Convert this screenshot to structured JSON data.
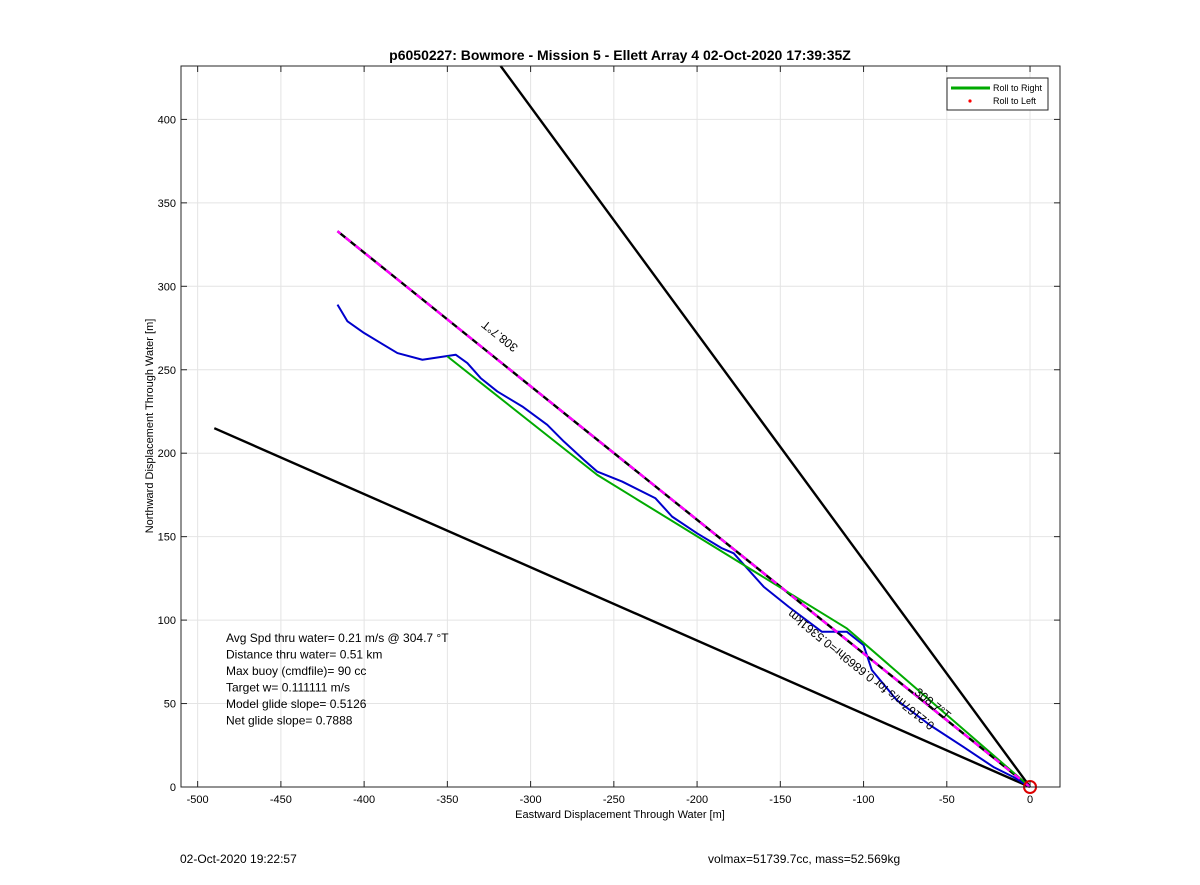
{
  "chart_data": {
    "type": "line",
    "title": "p6050227: Bowmore - Mission 5 - Ellett Array 4 02-Oct-2020 17:39:35Z",
    "xlabel": "Eastward Displacement Through Water [m]",
    "ylabel": "Northward Displacement Through Water [m]",
    "xlim": [
      -510,
      18
    ],
    "ylim": [
      0,
      432
    ],
    "xticks": [
      -500,
      -450,
      -400,
      -350,
      -300,
      -250,
      -200,
      -150,
      -100,
      -50,
      0
    ],
    "yticks": [
      0,
      50,
      100,
      150,
      200,
      250,
      300,
      350,
      400
    ],
    "grid": true,
    "legend_position": "top-right",
    "legend": [
      {
        "label": "Roll to Right",
        "color": "#00aa00",
        "style": "line"
      },
      {
        "label": "Roll to Left",
        "color": "#ff0000",
        "style": "dot"
      }
    ],
    "series": [
      {
        "color": "#0000cc",
        "x": [
          0,
          -10,
          -22,
          -40,
          -60,
          -80,
          -95,
          -100,
          -110,
          -125,
          -145,
          -160,
          -178,
          -185,
          -200,
          -215,
          -225,
          -245,
          -260,
          -268,
          -280,
          -290,
          -305,
          -320,
          -330,
          -338,
          -345,
          -365,
          -380,
          -390,
          -400,
          -410,
          -416
        ],
        "y": [
          0,
          6,
          12,
          24,
          37,
          52,
          70,
          85,
          93,
          93,
          108,
          120,
          140,
          143,
          152,
          162,
          173,
          183,
          189,
          196,
          207,
          217,
          228,
          237,
          245,
          254,
          259,
          256,
          260,
          266,
          272,
          279,
          289
        ]
      },
      {
        "color": "#00aa00",
        "x": [
          0,
          -110,
          -260,
          -350
        ],
        "y": [
          0,
          95,
          187,
          258
        ]
      },
      {
        "color": "#ff00ff",
        "x": [
          0,
          -416
        ],
        "y": [
          0,
          333
        ]
      }
    ],
    "reference_lines": [
      {
        "x": [
          0,
          -416
        ],
        "y": [
          0,
          333
        ],
        "color": "#000000",
        "dashed": true
      },
      {
        "x": [
          0,
          -318
        ],
        "y": [
          0,
          432
        ],
        "color": "#000000",
        "dashed": false
      },
      {
        "x": [
          0,
          -490
        ],
        "y": [
          0,
          215
        ],
        "color": "#000000",
        "dashed": false
      }
    ],
    "start_marker": {
      "x": 0,
      "y": 0,
      "color": "#dd0000"
    },
    "annotations": [
      {
        "text": "308.7°T",
        "x": -317,
        "y": 272,
        "rotation": 218.7
      },
      {
        "text": "308.7°T",
        "x": -60,
        "y": 48,
        "rotation": 38.7
      },
      {
        "text": "0.2167m/s for 0.6869hr=0.5361km",
        "x": -100,
        "y": 72,
        "rotation": 218.7
      }
    ],
    "stats_box": [
      "Avg Spd thru water=  0.21 m/s @ 304.7 °T",
      "Distance thru water=  0.51 km",
      "Max buoy (cmdfile)= 90 cc",
      "Target w= 0.111111 m/s",
      "Model glide slope= 0.5126",
      "Net glide slope= 0.7888"
    ]
  },
  "footer": {
    "left": "02-Oct-2020 19:22:57",
    "right": "volmax=51739.7cc, mass=52.569kg"
  }
}
